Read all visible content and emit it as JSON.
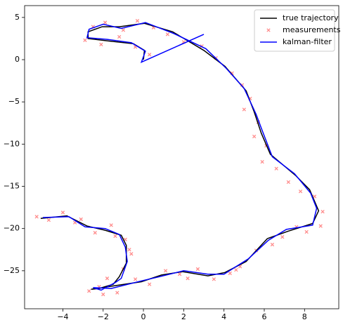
{
  "chart_data": {
    "type": "line",
    "xlim": [
      -5.9,
      9.7
    ],
    "ylim": [
      -29.5,
      6.4
    ],
    "xticks": [
      {
        "value": -4,
        "label": "−4"
      },
      {
        "value": -2,
        "label": "−2"
      },
      0,
      2,
      4,
      6,
      8
    ],
    "yticks": [
      5,
      0,
      {
        "value": -5,
        "label": "−5"
      },
      {
        "value": -10,
        "label": "−10"
      },
      {
        "value": -15,
        "label": "−15"
      },
      {
        "value": -20,
        "label": "−20"
      },
      {
        "value": -25,
        "label": "−25"
      }
    ],
    "grid": false,
    "legend": "upper right",
    "series": [
      {
        "name": "true trajectory",
        "type": "line",
        "color": "#000000",
        "x": [
          0,
          0.05,
          -0.5,
          -1.7,
          -2.75,
          -2.75,
          -2.05,
          -1.2,
          0.05,
          1.45,
          3.0,
          4.05,
          5.1,
          5.5,
          5.85,
          6.3,
          7.55,
          8.25,
          8.7,
          8.4,
          7.2,
          6.15,
          5.1,
          4.05,
          3.2,
          1.95,
          0.9,
          -0.1,
          -1.5,
          -2.6,
          -2.2,
          -1.5,
          -1.2,
          -0.85,
          -0.85,
          -1.1,
          -1.9,
          -2.8,
          -3.8,
          -5.1
        ],
        "values": [
          0,
          1.1,
          1.9,
          2.2,
          2.5,
          3.3,
          3.9,
          3.9,
          4.3,
          3.3,
          1.1,
          -0.8,
          -3.7,
          -6.2,
          -8.7,
          -11.2,
          -13.7,
          -15.4,
          -17.9,
          -19.4,
          -20.3,
          -21.2,
          -23.9,
          -25.2,
          -25.6,
          -25.1,
          -25.5,
          -26.3,
          -26.8,
          -27.2,
          -27.1,
          -26.6,
          -25.7,
          -24.1,
          -22,
          -20.8,
          -20.2,
          -19.7,
          -18.5,
          -18.8
        ]
      },
      {
        "name": "measurements",
        "type": "scatter",
        "color": "#ff0000",
        "x": [
          0.3,
          -0.4,
          -1.2,
          -2.1,
          -2.9,
          -2.5,
          -1.9,
          -1.0,
          -0.3,
          0.5,
          1.2,
          2.0,
          2.9,
          3.6,
          4.4,
          4.9,
          5.3,
          5.0,
          5.7,
          5.5,
          6.1,
          5.9,
          6.6,
          7.2,
          7.8,
          8.5,
          8.9,
          8.8,
          8.1,
          7.6,
          6.9,
          6.4,
          5.6,
          4.8,
          4.3,
          3.5,
          2.7,
          1.8,
          1.1,
          0.3,
          -0.4,
          -1.3,
          -2.2,
          -2.7,
          -1.8,
          -1.0,
          -0.6,
          -0.9,
          -1.4,
          -0.7,
          -1.6,
          -2.4,
          -3.1,
          -4.0,
          -4.7,
          -5.3,
          -3.4,
          -2.0,
          2.2,
          4.6
        ],
        "values": [
          0.6,
          1.5,
          2.7,
          1.8,
          2.3,
          3.9,
          4.4,
          3.5,
          4.6,
          3.8,
          3.0,
          2.1,
          1.6,
          0.2,
          -1.6,
          -3.0,
          -4.6,
          -5.9,
          -7.4,
          -9.1,
          -10.2,
          -12.1,
          -12.9,
          -14.5,
          -15.6,
          -16.2,
          -18.0,
          -19.7,
          -20.4,
          -19.8,
          -21.0,
          -21.9,
          -22.6,
          -24.5,
          -25.3,
          -26.0,
          -24.8,
          -25.4,
          -25.0,
          -26.6,
          -26.0,
          -27.6,
          -26.9,
          -27.4,
          -25.9,
          -24.8,
          -23.0,
          -21.3,
          -20.9,
          -22.5,
          -19.6,
          -20.5,
          -18.9,
          -18.1,
          -19.0,
          -18.6,
          -19.3,
          -27.8,
          -25.9,
          -24.9
        ]
      },
      {
        "name": "kalman-filter",
        "type": "line",
        "color": "#0000ff",
        "x": [
          3.0,
          -0.1,
          0.1,
          -0.6,
          -1.8,
          -2.8,
          -2.7,
          -2.0,
          -1.1,
          0.1,
          1.5,
          3.1,
          4.1,
          5.0,
          5.6,
          5.9,
          6.4,
          7.5,
          8.3,
          8.6,
          8.4,
          7.1,
          6.2,
          5.2,
          4.0,
          3.2,
          2.0,
          0.8,
          -0.1,
          -1.6,
          -2.5,
          -2.1,
          -1.4,
          -1.1,
          -0.8,
          -0.9,
          -1.2,
          -1.9,
          -2.9,
          -3.7,
          -5.0
        ],
        "values": [
          3.0,
          -0.3,
          1.0,
          2.0,
          2.4,
          2.6,
          3.6,
          4.2,
          3.7,
          4.4,
          3.1,
          1.3,
          -1.0,
          -3.4,
          -6.5,
          -8.4,
          -11.5,
          -13.5,
          -15.8,
          -17.6,
          -19.6,
          -20.1,
          -21.4,
          -23.6,
          -25.4,
          -25.4,
          -25.0,
          -25.7,
          -26.2,
          -27.1,
          -27.0,
          -27.3,
          -26.4,
          -25.9,
          -23.9,
          -22.2,
          -20.7,
          -20.0,
          -19.8,
          -18.6,
          -18.7
        ]
      }
    ]
  }
}
